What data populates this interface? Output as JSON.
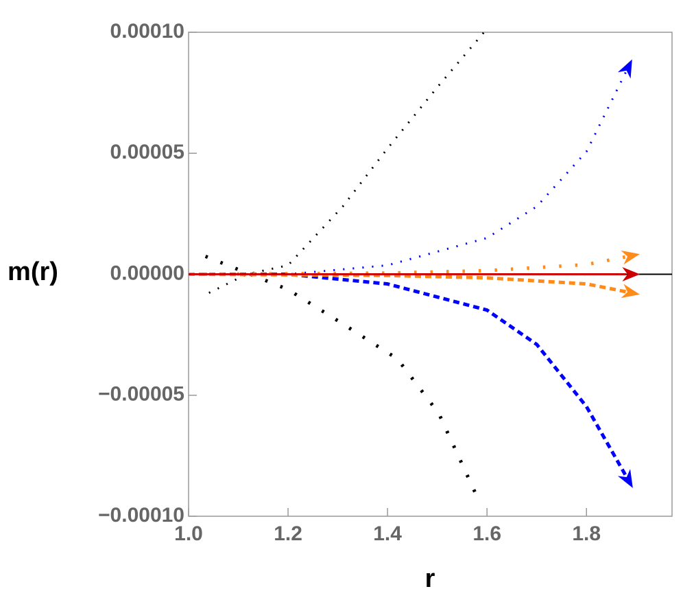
{
  "chart_data": {
    "type": "line",
    "x_label": "r",
    "y_label": "m(r)",
    "xlim": [
      1.0,
      1.972
    ],
    "ylim": [
      -0.0001,
      0.0001
    ],
    "xticks": [
      {
        "value": 1,
        "label": "1.0"
      },
      1.2,
      1.4,
      1.6,
      1.8
    ],
    "yticks": [
      {
        "value": -0.0001,
        "label": "−0.00010"
      },
      {
        "value": -5e-05,
        "label": "−0.00005"
      },
      {
        "value": 0,
        "label": "0.00000"
      },
      {
        "value": 5e-05,
        "label": "0.00005"
      },
      {
        "value": 0.0001,
        "label": "0.00010"
      }
    ],
    "series": [
      {
        "color": "#000000",
        "style": "dotted",
        "width": 3,
        "x": [
          1.041,
          1.117,
          1.2,
          1.31,
          1.4,
          1.503,
          1.594
        ],
        "values": [
          -7.7e-06,
          0,
          3.7e-06,
          2.8e-05,
          5.2e-05,
          7.8e-05,
          0.0001
        ]
      },
      {
        "color": "#000000",
        "style": "dotted",
        "width": 5,
        "x": [
          1.034,
          1.2,
          1.31,
          1.42,
          1.503,
          1.586
        ],
        "values": [
          7.4e-06,
          -6.3e-06,
          -2.05e-05,
          -3.5e-05,
          -5.75e-05,
          -9.46e-05
        ]
      },
      {
        "color": "#0000ff",
        "style": "dotted",
        "width": 3,
        "arrow": true,
        "x": [
          1.0,
          1.2,
          1.4,
          1.6,
          1.7,
          1.8,
          1.879
        ],
        "values": [
          0,
          0,
          3.7e-06,
          1.5e-05,
          2.8e-05,
          5.07e-05,
          8.35e-05
        ]
      },
      {
        "color": "#0000ff",
        "style": "dashed",
        "width": 5,
        "arrow": true,
        "x": [
          1.0,
          1.2,
          1.4,
          1.6,
          1.7,
          1.8,
          1.879
        ],
        "values": [
          0,
          0,
          -4e-06,
          -1.48e-05,
          -2.9e-05,
          -5.47e-05,
          -8.32e-05
        ]
      },
      {
        "color": "#ff8c1a",
        "style": "dotted",
        "width": 5,
        "arrow": true,
        "x": [
          1.0,
          1.4,
          1.6,
          1.8,
          1.879
        ],
        "values": [
          0,
          5e-07,
          1.5e-06,
          4e-06,
          7.2e-06
        ]
      },
      {
        "color": "#ff8c1a",
        "style": "dashed",
        "width": 5,
        "arrow": true,
        "x": [
          1.0,
          1.4,
          1.6,
          1.8,
          1.879
        ],
        "values": [
          0,
          -5e-07,
          -1.5e-06,
          -4e-06,
          -7.2e-06
        ]
      },
      {
        "color": "#cc0000",
        "style": "solid",
        "width": 3,
        "arrow": true,
        "x": [
          1.0,
          1.879
        ],
        "values": [
          0,
          0
        ]
      }
    ]
  }
}
